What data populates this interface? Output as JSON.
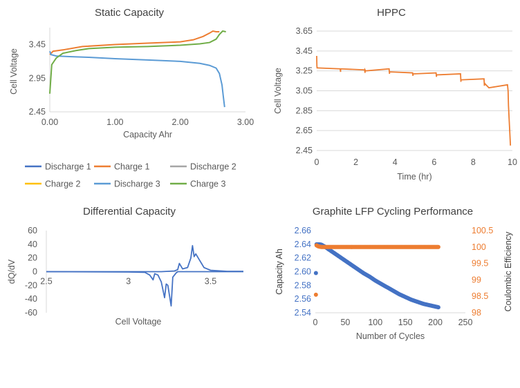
{
  "chart_data": [
    {
      "type": "line",
      "title": "Static Capacity",
      "xlabel": "Capacity Ahr",
      "ylabel": "Cell Voltage",
      "xlim": [
        0,
        3
      ],
      "ylim": [
        2.45,
        3.65
      ],
      "xticks": [
        "0.00",
        "1.00",
        "2.00",
        "3.00"
      ],
      "yticks": [
        "2.45",
        "2.95",
        "3.45"
      ],
      "legend_position": "bottom",
      "series": [
        {
          "name": "Discharge 1",
          "color": "#4472C4",
          "x": [],
          "y": []
        },
        {
          "name": "Charge 1",
          "color": "#ED7D31",
          "x": [
            0,
            0.05,
            0.2,
            0.5,
            1.0,
            1.5,
            2.0,
            2.2,
            2.35,
            2.45,
            2.5,
            2.55,
            2.6
          ],
          "y": [
            3.3,
            3.35,
            3.37,
            3.42,
            3.45,
            3.47,
            3.49,
            3.52,
            3.57,
            3.62,
            3.65,
            3.64,
            3.64
          ]
        },
        {
          "name": "Discharge 2",
          "color": "#A5A5A5",
          "x": [],
          "y": []
        },
        {
          "name": "Charge 2",
          "color": "#FFC000",
          "x": [],
          "y": []
        },
        {
          "name": "Discharge 3",
          "color": "#5B9BD5",
          "x": [
            0,
            0.02,
            0.1,
            0.3,
            0.6,
            1.0,
            1.5,
            2.0,
            2.3,
            2.45,
            2.55,
            2.6,
            2.64,
            2.66,
            2.68
          ],
          "y": [
            3.35,
            3.3,
            3.28,
            3.27,
            3.26,
            3.24,
            3.22,
            3.2,
            3.17,
            3.14,
            3.1,
            3.02,
            2.85,
            2.68,
            2.52
          ]
        },
        {
          "name": "Charge 3",
          "color": "#70AD47",
          "x": [
            0,
            0.03,
            0.1,
            0.2,
            0.4,
            0.6,
            1.0,
            1.5,
            2.0,
            2.3,
            2.45,
            2.55,
            2.6,
            2.65,
            2.7
          ],
          "y": [
            2.72,
            3.15,
            3.25,
            3.32,
            3.36,
            3.39,
            3.41,
            3.42,
            3.44,
            3.46,
            3.48,
            3.53,
            3.6,
            3.65,
            3.64
          ]
        }
      ]
    },
    {
      "type": "line",
      "title": "HPPC",
      "xlabel": "Time (hr)",
      "ylabel": "Cell Voltage",
      "xlim": [
        0,
        10
      ],
      "ylim": [
        2.45,
        3.65
      ],
      "xticks": [
        "0",
        "2",
        "4",
        "6",
        "8",
        "10"
      ],
      "yticks": [
        "2.45",
        "2.65",
        "2.85",
        "3.05",
        "3.25",
        "3.45",
        "3.65"
      ],
      "series": [
        {
          "color": "#ED7D31",
          "x": [
            0,
            0.01,
            0.02,
            0.05,
            1.2,
            1.22,
            1.22,
            1.25,
            2.45,
            2.47,
            2.47,
            2.5,
            3.7,
            3.72,
            3.72,
            3.75,
            4.9,
            4.92,
            4.92,
            4.95,
            6.1,
            6.12,
            6.12,
            6.15,
            7.35,
            7.37,
            7.37,
            7.4,
            8.55,
            8.57,
            8.57,
            8.6,
            8.7,
            8.8,
            9.75,
            9.78,
            9.8,
            9.85,
            9.9
          ],
          "y": [
            3.4,
            3.3,
            3.28,
            3.28,
            3.27,
            3.24,
            3.27,
            3.27,
            3.26,
            3.23,
            3.26,
            3.25,
            3.27,
            3.22,
            3.24,
            3.24,
            3.23,
            3.2,
            3.22,
            3.22,
            3.23,
            3.19,
            3.21,
            3.21,
            3.22,
            3.14,
            3.16,
            3.16,
            3.17,
            3.1,
            3.13,
            3.12,
            3.1,
            3.08,
            3.11,
            3.05,
            2.9,
            2.7,
            2.5
          ]
        }
      ]
    },
    {
      "type": "line",
      "title": "Differential Capacity",
      "xlabel": "Cell Voltage",
      "ylabel": "dQ/dV",
      "xlim": [
        2.5,
        3.7
      ],
      "ylim": [
        -60,
        60
      ],
      "xticks": [
        "2.5",
        "3",
        "3.5"
      ],
      "yticks": [
        "-60",
        "-40",
        "-20",
        "0",
        "20",
        "40",
        "60"
      ],
      "series": [
        {
          "color": "#4472C4",
          "x": [
            2.5,
            3.0,
            3.1,
            3.13,
            3.15,
            3.16,
            3.18,
            3.2,
            3.22,
            3.23,
            3.24,
            3.26,
            3.27,
            3.29,
            3.3,
            3.35,
            3.4,
            3.45,
            3.5,
            3.7
          ],
          "y": [
            0,
            -0.5,
            -1,
            -5,
            -12,
            -3,
            -5,
            -15,
            -38,
            -18,
            -20,
            -50,
            -8,
            -2,
            0,
            0,
            0,
            0,
            0,
            0
          ]
        },
        {
          "color": "#4472C4",
          "x": [
            2.5,
            3.2,
            3.28,
            3.3,
            3.31,
            3.33,
            3.36,
            3.38,
            3.39,
            3.4,
            3.41,
            3.43,
            3.46,
            3.5,
            3.6,
            3.7
          ],
          "y": [
            0,
            0,
            1,
            3,
            12,
            4,
            6,
            20,
            38,
            22,
            26,
            18,
            6,
            2,
            0.5,
            0.5
          ]
        }
      ]
    },
    {
      "type": "scatter",
      "title": "Graphite LFP Cycling Performance",
      "xlabel": "Number of Cycles",
      "ylabel": "Capacity Ah",
      "y2label": "Coulombic Efficiency",
      "xlim": [
        0,
        250
      ],
      "ylim": [
        2.54,
        2.66
      ],
      "y2lim": [
        98,
        100.5
      ],
      "xticks": [
        "0",
        "50",
        "100",
        "150",
        "200",
        "250"
      ],
      "yticks": [
        "2.54",
        "2.56",
        "2.58",
        "2.60",
        "2.62",
        "2.64",
        "2.66"
      ],
      "y2ticks": [
        "98",
        "98.5",
        "99",
        "99.5",
        "100",
        "100.5"
      ],
      "series": [
        {
          "color": "#4472C4",
          "axis": "left",
          "x": [
            1,
            2,
            5,
            10,
            15,
            20,
            30,
            40,
            50,
            60,
            70,
            80,
            90,
            100,
            110,
            120,
            130,
            140,
            150,
            160,
            170,
            180,
            190,
            200,
            205
          ],
          "y": [
            2.598,
            2.64,
            2.64,
            2.6395,
            2.637,
            2.634,
            2.628,
            2.622,
            2.616,
            2.61,
            2.604,
            2.598,
            2.593,
            2.587,
            2.582,
            2.577,
            2.572,
            2.567,
            2.563,
            2.559,
            2.556,
            2.553,
            2.551,
            2.549,
            2.548
          ]
        },
        {
          "color": "#ED7D31",
          "axis": "right",
          "x": [
            1,
            2,
            5,
            10,
            20,
            30,
            40,
            50,
            60,
            70,
            80,
            90,
            100,
            110,
            120,
            130,
            140,
            150,
            160,
            170,
            180,
            190,
            200,
            205
          ],
          "y": [
            98.55,
            100.05,
            100.02,
            100.0,
            100.0,
            100.0,
            100.0,
            100.0,
            100.0,
            100.0,
            100.0,
            100.0,
            100.0,
            100.0,
            100.0,
            100.0,
            100.0,
            100.0,
            100.0,
            100.0,
            100.0,
            100.0,
            100.0,
            100.0
          ]
        }
      ]
    }
  ]
}
